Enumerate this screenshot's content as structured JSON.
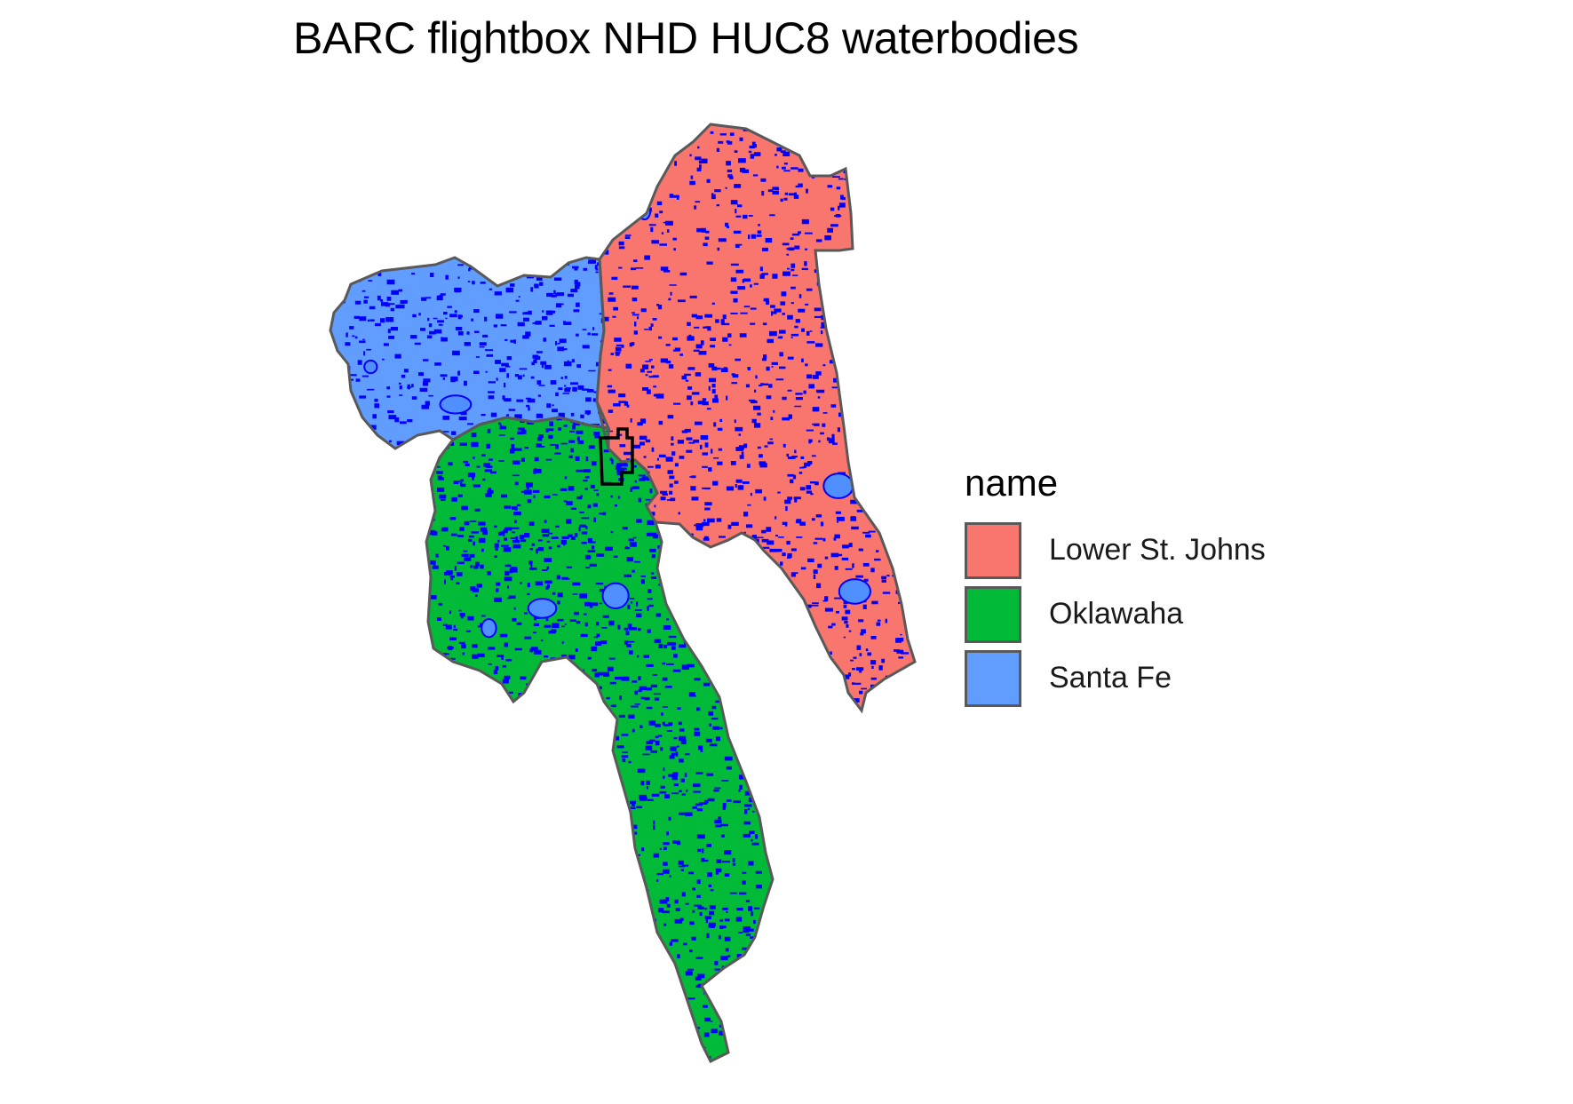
{
  "title": "BARC flightbox NHD HUC8 waterbodies",
  "legend": {
    "title": "name",
    "items": [
      {
        "label": "Lower St. Johns",
        "color": "#F8766D"
      },
      {
        "label": "Oklawaha",
        "color": "#00BA38"
      },
      {
        "label": "Santa Fe",
        "color": "#619CFF"
      }
    ]
  },
  "colors": {
    "waterbodies": "#0000FF",
    "lakes": "#4F8FFF",
    "boundary": "#595959",
    "flightbox": "#000000"
  },
  "chart_data": {
    "type": "map",
    "title": "BARC flightbox NHD HUC8 waterbodies",
    "legend_title": "name",
    "regions": [
      {
        "name": "Lower St. Johns",
        "color": "#F8766D"
      },
      {
        "name": "Oklawaha",
        "color": "#00BA38"
      },
      {
        "name": "Santa Fe",
        "color": "#619CFF"
      }
    ],
    "overlays": [
      "NHD waterbodies",
      "BARC flightbox"
    ],
    "legend_position": "right",
    "grid": false
  }
}
